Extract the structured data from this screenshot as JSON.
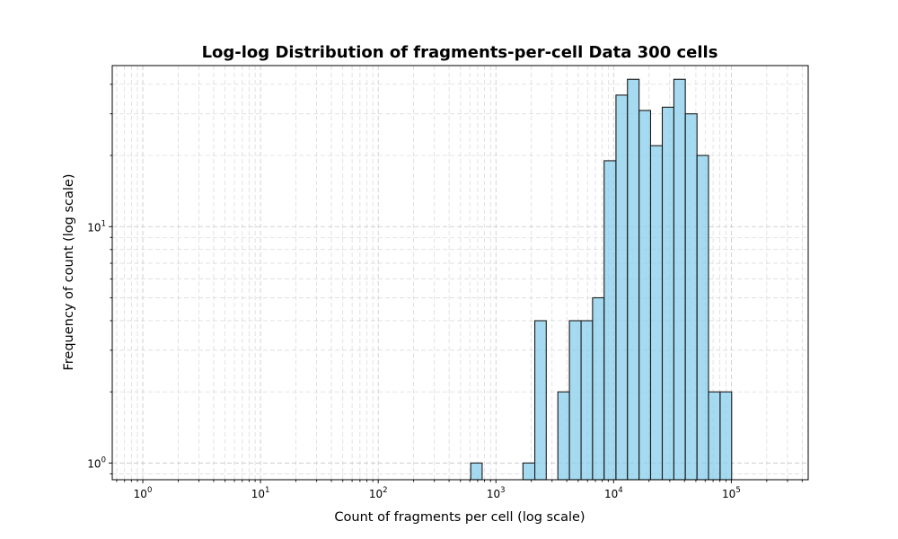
{
  "chart_data": {
    "type": "bar",
    "title": "Log-log Distribution of fragments-per-cell Data 300 cells",
    "xlabel": "Count of fragments per cell (log scale)",
    "ylabel": "Frequency of count (log scale)",
    "x_scale": "log",
    "y_scale": "log",
    "xlim": [
      0.55,
      450000
    ],
    "ylim": [
      0.85,
      48
    ],
    "grid": true,
    "x_ticks": [
      {
        "value": 1,
        "base": "10",
        "exp": "0"
      },
      {
        "value": 10,
        "base": "10",
        "exp": "1"
      },
      {
        "value": 100,
        "base": "10",
        "exp": "2"
      },
      {
        "value": 1000,
        "base": "10",
        "exp": "3"
      },
      {
        "value": 10000,
        "base": "10",
        "exp": "4"
      },
      {
        "value": 100000,
        "base": "10",
        "exp": "5"
      }
    ],
    "y_ticks": [
      {
        "value": 1,
        "base": "10",
        "exp": "0"
      },
      {
        "value": 10,
        "base": "10",
        "exp": "1"
      }
    ],
    "bins": [
      {
        "x0": 611,
        "x1": 764,
        "count": 1
      },
      {
        "x0": 1698,
        "x1": 2140,
        "count": 1
      },
      {
        "x0": 2140,
        "x1": 2677,
        "count": 4
      },
      {
        "x0": 3360,
        "x1": 4212,
        "count": 2
      },
      {
        "x0": 4212,
        "x1": 5290,
        "count": 4
      },
      {
        "x0": 5290,
        "x1": 6625,
        "count": 4
      },
      {
        "x0": 6625,
        "x1": 8308,
        "count": 5
      },
      {
        "x0": 8308,
        "x1": 10470,
        "count": 19
      },
      {
        "x0": 10470,
        "x1": 13110,
        "count": 36
      },
      {
        "x0": 13110,
        "x1": 16450,
        "count": 42
      },
      {
        "x0": 16450,
        "x1": 20610,
        "count": 31
      },
      {
        "x0": 20610,
        "x1": 25910,
        "count": 22
      },
      {
        "x0": 25910,
        "x1": 32510,
        "count": 32
      },
      {
        "x0": 32510,
        "x1": 40670,
        "count": 42
      },
      {
        "x0": 40670,
        "x1": 51110,
        "count": 30
      },
      {
        "x0": 51110,
        "x1": 64010,
        "count": 20
      },
      {
        "x0": 64010,
        "x1": 80330,
        "count": 2
      },
      {
        "x0": 80330,
        "x1": 100700,
        "count": 2
      }
    ]
  }
}
